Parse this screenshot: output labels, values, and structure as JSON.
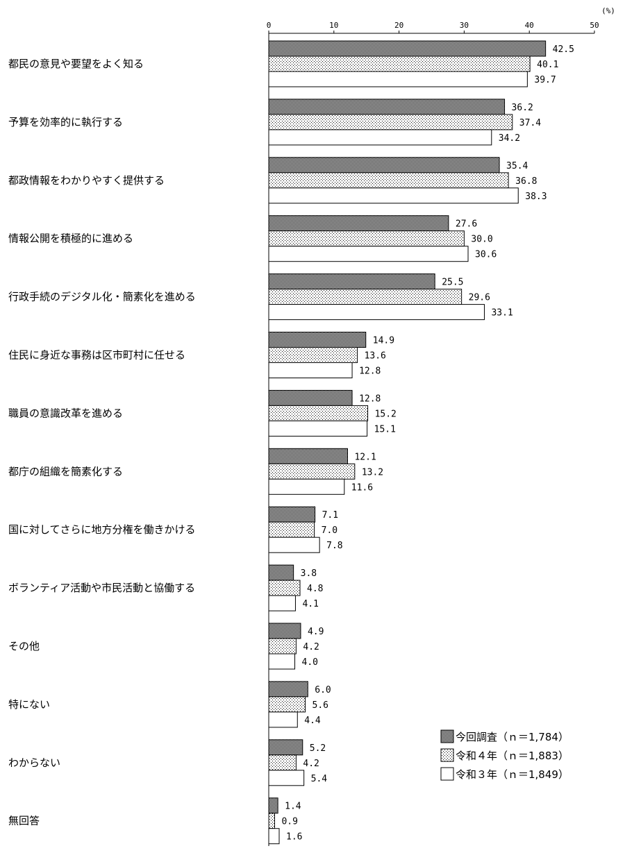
{
  "chart_data": {
    "type": "bar",
    "orientation": "horizontal",
    "unit_label": "(%)",
    "xlim": [
      0,
      50
    ],
    "ticks": [
      "0",
      "10",
      "20",
      "30",
      "40",
      "50"
    ],
    "categories": [
      "都民の意見や要望をよく知る",
      "予算を効率的に執行する",
      "都政情報をわかりやすく提供する",
      "情報公開を積極的に進める",
      "行政手続のデジタル化・簡素化を進める",
      "住民に身近な事務は区市町村に任せる",
      "職員の意識改革を進める",
      "都庁の組織を簡素化する",
      "国に対してさらに地方分権を働きかける",
      "ボランティア活動や市民活動と協働する",
      "その他",
      "特にない",
      "わからない",
      "無回答"
    ],
    "series": [
      {
        "name": "今回調査（ｎ＝1,784）",
        "pattern": "dense",
        "values": [
          42.5,
          36.2,
          35.4,
          27.6,
          25.5,
          14.9,
          12.8,
          12.1,
          7.1,
          3.8,
          4.9,
          6.0,
          5.2,
          1.4
        ],
        "labels": [
          "42.5",
          "36.2",
          "35.4",
          "27.6",
          "25.5",
          "14.9",
          "12.8",
          "12.1",
          "7.1",
          "3.8",
          "4.9",
          "6.0",
          "5.2",
          "1.4"
        ]
      },
      {
        "name": "令和４年（ｎ＝1,883）",
        "pattern": "sparse",
        "values": [
          40.1,
          37.4,
          36.8,
          30.0,
          29.6,
          13.6,
          15.2,
          13.2,
          7.0,
          4.8,
          4.2,
          5.6,
          4.2,
          0.9
        ],
        "labels": [
          "40.1",
          "37.4",
          "36.8",
          "30.0",
          "29.6",
          "13.6",
          "15.2",
          "13.2",
          "7.0",
          "4.8",
          "4.2",
          "5.6",
          "4.2",
          "0.9"
        ]
      },
      {
        "name": "令和３年（ｎ＝1,849）",
        "pattern": "white",
        "values": [
          39.7,
          34.2,
          38.3,
          30.6,
          33.1,
          12.8,
          15.1,
          11.6,
          7.8,
          4.1,
          4.0,
          4.4,
          5.4,
          1.6
        ],
        "labels": [
          "39.7",
          "34.2",
          "38.3",
          "30.6",
          "33.1",
          "12.8",
          "15.1",
          "11.6",
          "7.8",
          "4.1",
          "4.0",
          "4.4",
          "5.4",
          "1.6"
        ]
      }
    ],
    "grid": false,
    "legend_position": "bottom-right"
  }
}
